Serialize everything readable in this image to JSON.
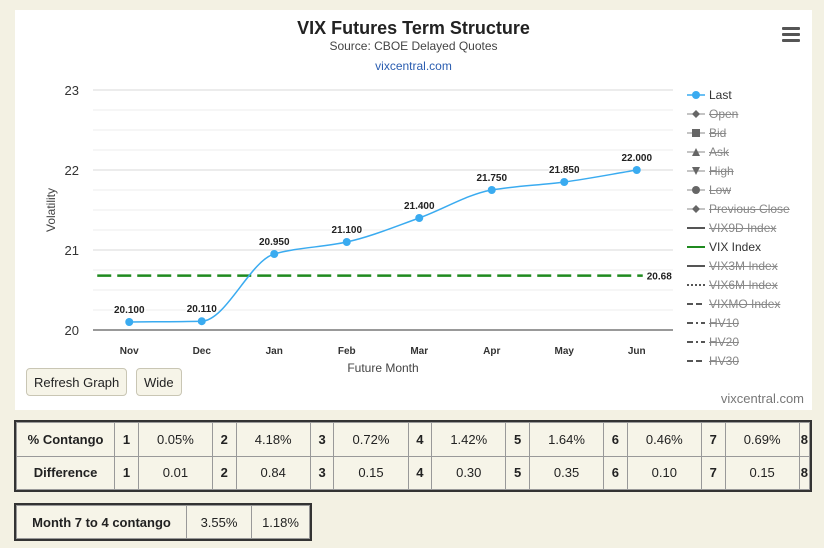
{
  "chart_data": {
    "type": "line",
    "title": "VIX Futures Term Structure",
    "subtitle": "Source: CBOE Delayed Quotes",
    "link": "vixcentral.com",
    "xlabel": "Future Month",
    "ylabel": "Volatility",
    "categories": [
      "Nov",
      "Dec",
      "Jan",
      "Feb",
      "Mar",
      "Apr",
      "May",
      "Jun"
    ],
    "ylim": [
      20,
      23
    ],
    "yticks": [
      "20",
      "21",
      "22",
      "23"
    ],
    "grid": true,
    "series": [
      {
        "name": "Last",
        "values": [
          20.1,
          20.11,
          20.95,
          21.1,
          21.4,
          21.75,
          21.85,
          22.0
        ],
        "labels": [
          "20.100",
          "20.110",
          "20.950",
          "21.100",
          "21.400",
          "21.750",
          "21.850",
          "22.000"
        ],
        "color": "#3aabf0"
      },
      {
        "name": "VIX Index",
        "value": 20.68,
        "label": "20.68",
        "color": "#1f8a1f",
        "style": "dashed"
      }
    ],
    "legend_position": "right"
  },
  "legend": [
    {
      "label": "Last",
      "symbol": "circle-line",
      "active": true
    },
    {
      "label": "Open",
      "symbol": "diamond",
      "active": false
    },
    {
      "label": "Bid",
      "symbol": "square",
      "active": false
    },
    {
      "label": "Ask",
      "symbol": "triangle-up",
      "active": false
    },
    {
      "label": "High",
      "symbol": "triangle-down",
      "active": false
    },
    {
      "label": "Low",
      "symbol": "circle",
      "active": false
    },
    {
      "label": "Previous Close",
      "symbol": "diamond",
      "active": false
    },
    {
      "label": "VIX9D Index",
      "symbol": "solid",
      "active": false
    },
    {
      "label": "VIX Index",
      "symbol": "solid-green",
      "active": true
    },
    {
      "label": "VIX3M Index",
      "symbol": "solid",
      "active": false
    },
    {
      "label": "VIX6M Index",
      "symbol": "dotted",
      "active": false
    },
    {
      "label": "VIXMO Index",
      "symbol": "dash",
      "active": false
    },
    {
      "label": "HV10",
      "symbol": "dashdot",
      "active": false
    },
    {
      "label": "HV20",
      "symbol": "dashdot",
      "active": false
    },
    {
      "label": "HV30",
      "symbol": "dash",
      "active": false
    }
  ],
  "buttons": {
    "refresh": "Refresh Graph",
    "wide": "Wide"
  },
  "credit": "vixcentral.com",
  "table_contango": {
    "label": "% Contango",
    "cells": [
      [
        "1",
        "0.05%"
      ],
      [
        "2",
        "4.18%"
      ],
      [
        "3",
        "0.72%"
      ],
      [
        "4",
        "1.42%"
      ],
      [
        "5",
        "1.64%"
      ],
      [
        "6",
        "0.46%"
      ],
      [
        "7",
        "0.69%"
      ]
    ],
    "last": "8"
  },
  "table_difference": {
    "label": "Difference",
    "cells": [
      [
        "1",
        "0.01"
      ],
      [
        "2",
        "0.84"
      ],
      [
        "3",
        "0.15"
      ],
      [
        "4",
        "0.30"
      ],
      [
        "5",
        "0.35"
      ],
      [
        "6",
        "0.10"
      ],
      [
        "7",
        "0.15"
      ]
    ],
    "last": "8"
  },
  "month_table": {
    "label": "Month 7 to 4 contango",
    "v1": "3.55%",
    "v2": "1.18%"
  }
}
